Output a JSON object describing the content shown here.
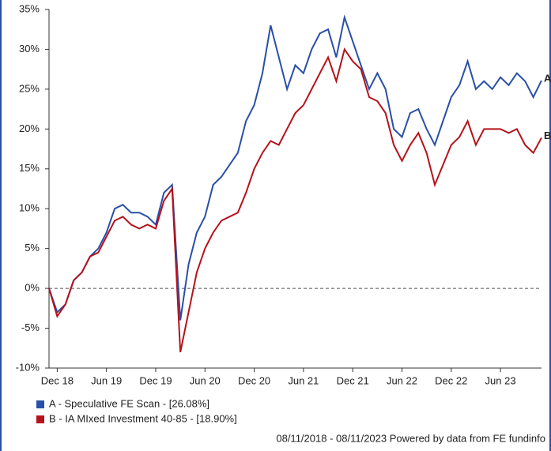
{
  "chart_data": {
    "type": "line",
    "x": [
      "2018-11",
      "2018-12",
      "2019-01",
      "2019-02",
      "2019-03",
      "2019-04",
      "2019-05",
      "2019-06",
      "2019-07",
      "2019-08",
      "2019-09",
      "2019-10",
      "2019-11",
      "2019-12",
      "2020-01",
      "2020-02",
      "2020-03",
      "2020-04",
      "2020-05",
      "2020-06",
      "2020-07",
      "2020-08",
      "2020-09",
      "2020-10",
      "2020-11",
      "2020-12",
      "2021-01",
      "2021-02",
      "2021-03",
      "2021-04",
      "2021-05",
      "2021-06",
      "2021-07",
      "2021-08",
      "2021-09",
      "2021-10",
      "2021-11",
      "2021-12",
      "2022-01",
      "2022-02",
      "2022-03",
      "2022-04",
      "2022-05",
      "2022-06",
      "2022-07",
      "2022-08",
      "2022-09",
      "2022-10",
      "2022-11",
      "2022-12",
      "2023-01",
      "2023-02",
      "2023-03",
      "2023-04",
      "2023-05",
      "2023-06",
      "2023-07",
      "2023-08",
      "2023-09",
      "2023-10",
      "2023-11"
    ],
    "series": [
      {
        "name": "A - Speculative FE Scan - [26.08%]",
        "label": "A",
        "color": "#2a4fa8",
        "values": [
          0,
          -3,
          -2,
          1,
          2,
          4,
          5,
          7,
          10,
          10.5,
          9.5,
          9.5,
          9,
          8,
          12,
          13,
          -4,
          3,
          7,
          9,
          13,
          14,
          15.5,
          17,
          21,
          23,
          27,
          33,
          29,
          25,
          28,
          27,
          30,
          32,
          32.5,
          29,
          34,
          31,
          28,
          25,
          27,
          25,
          20,
          19,
          22,
          22.5,
          20,
          18,
          21,
          24,
          25.5,
          28.5,
          25,
          26,
          25,
          26.5,
          25.5,
          27,
          26,
          24,
          26.08
        ]
      },
      {
        "name": "B - IA MIxed Investment 40-85 - [18.90%]",
        "label": "B",
        "color": "#b5121b",
        "values": [
          0,
          -3.5,
          -2,
          1,
          2,
          4,
          4.5,
          6.5,
          8.5,
          9,
          8,
          7.5,
          8,
          7.5,
          11,
          12.5,
          -8,
          -3,
          2,
          5,
          7,
          8.5,
          9,
          9.5,
          12,
          15,
          17,
          18.5,
          18,
          20,
          22,
          23,
          25,
          27,
          29,
          26,
          30,
          28.5,
          27.5,
          24,
          23.5,
          22,
          18,
          16,
          18,
          19.5,
          17,
          13,
          15.5,
          18,
          19,
          21,
          18,
          20,
          20,
          20,
          19.5,
          20,
          18,
          17,
          18.9
        ]
      }
    ],
    "xlim": [
      "2018-11",
      "2023-11"
    ],
    "xticks": [
      {
        "value": "2018-12",
        "label": "Dec 18"
      },
      {
        "value": "2019-06",
        "label": "Jun 19"
      },
      {
        "value": "2019-12",
        "label": "Dec 19"
      },
      {
        "value": "2020-06",
        "label": "Jun 20"
      },
      {
        "value": "2020-12",
        "label": "Dec 20"
      },
      {
        "value": "2021-06",
        "label": "Jun 21"
      },
      {
        "value": "2021-12",
        "label": "Dec 21"
      },
      {
        "value": "2022-06",
        "label": "Jun 22"
      },
      {
        "value": "2022-12",
        "label": "Dec 22"
      },
      {
        "value": "2023-06",
        "label": "Jun 23"
      }
    ],
    "ylim": [
      -10,
      35
    ],
    "yticks": [
      {
        "value": -10,
        "label": "-10%"
      },
      {
        "value": -5,
        "label": "-5%"
      },
      {
        "value": 0,
        "label": "0%"
      },
      {
        "value": 5,
        "label": "5%"
      },
      {
        "value": 10,
        "label": "10%"
      },
      {
        "value": 15,
        "label": "15%"
      },
      {
        "value": 20,
        "label": "20%"
      },
      {
        "value": 25,
        "label": "25%"
      },
      {
        "value": 30,
        "label": "30%"
      },
      {
        "value": 35,
        "label": "35%"
      }
    ],
    "footer": "08/11/2018 - 08/11/2023 Powered by data from FE fundinfo"
  }
}
